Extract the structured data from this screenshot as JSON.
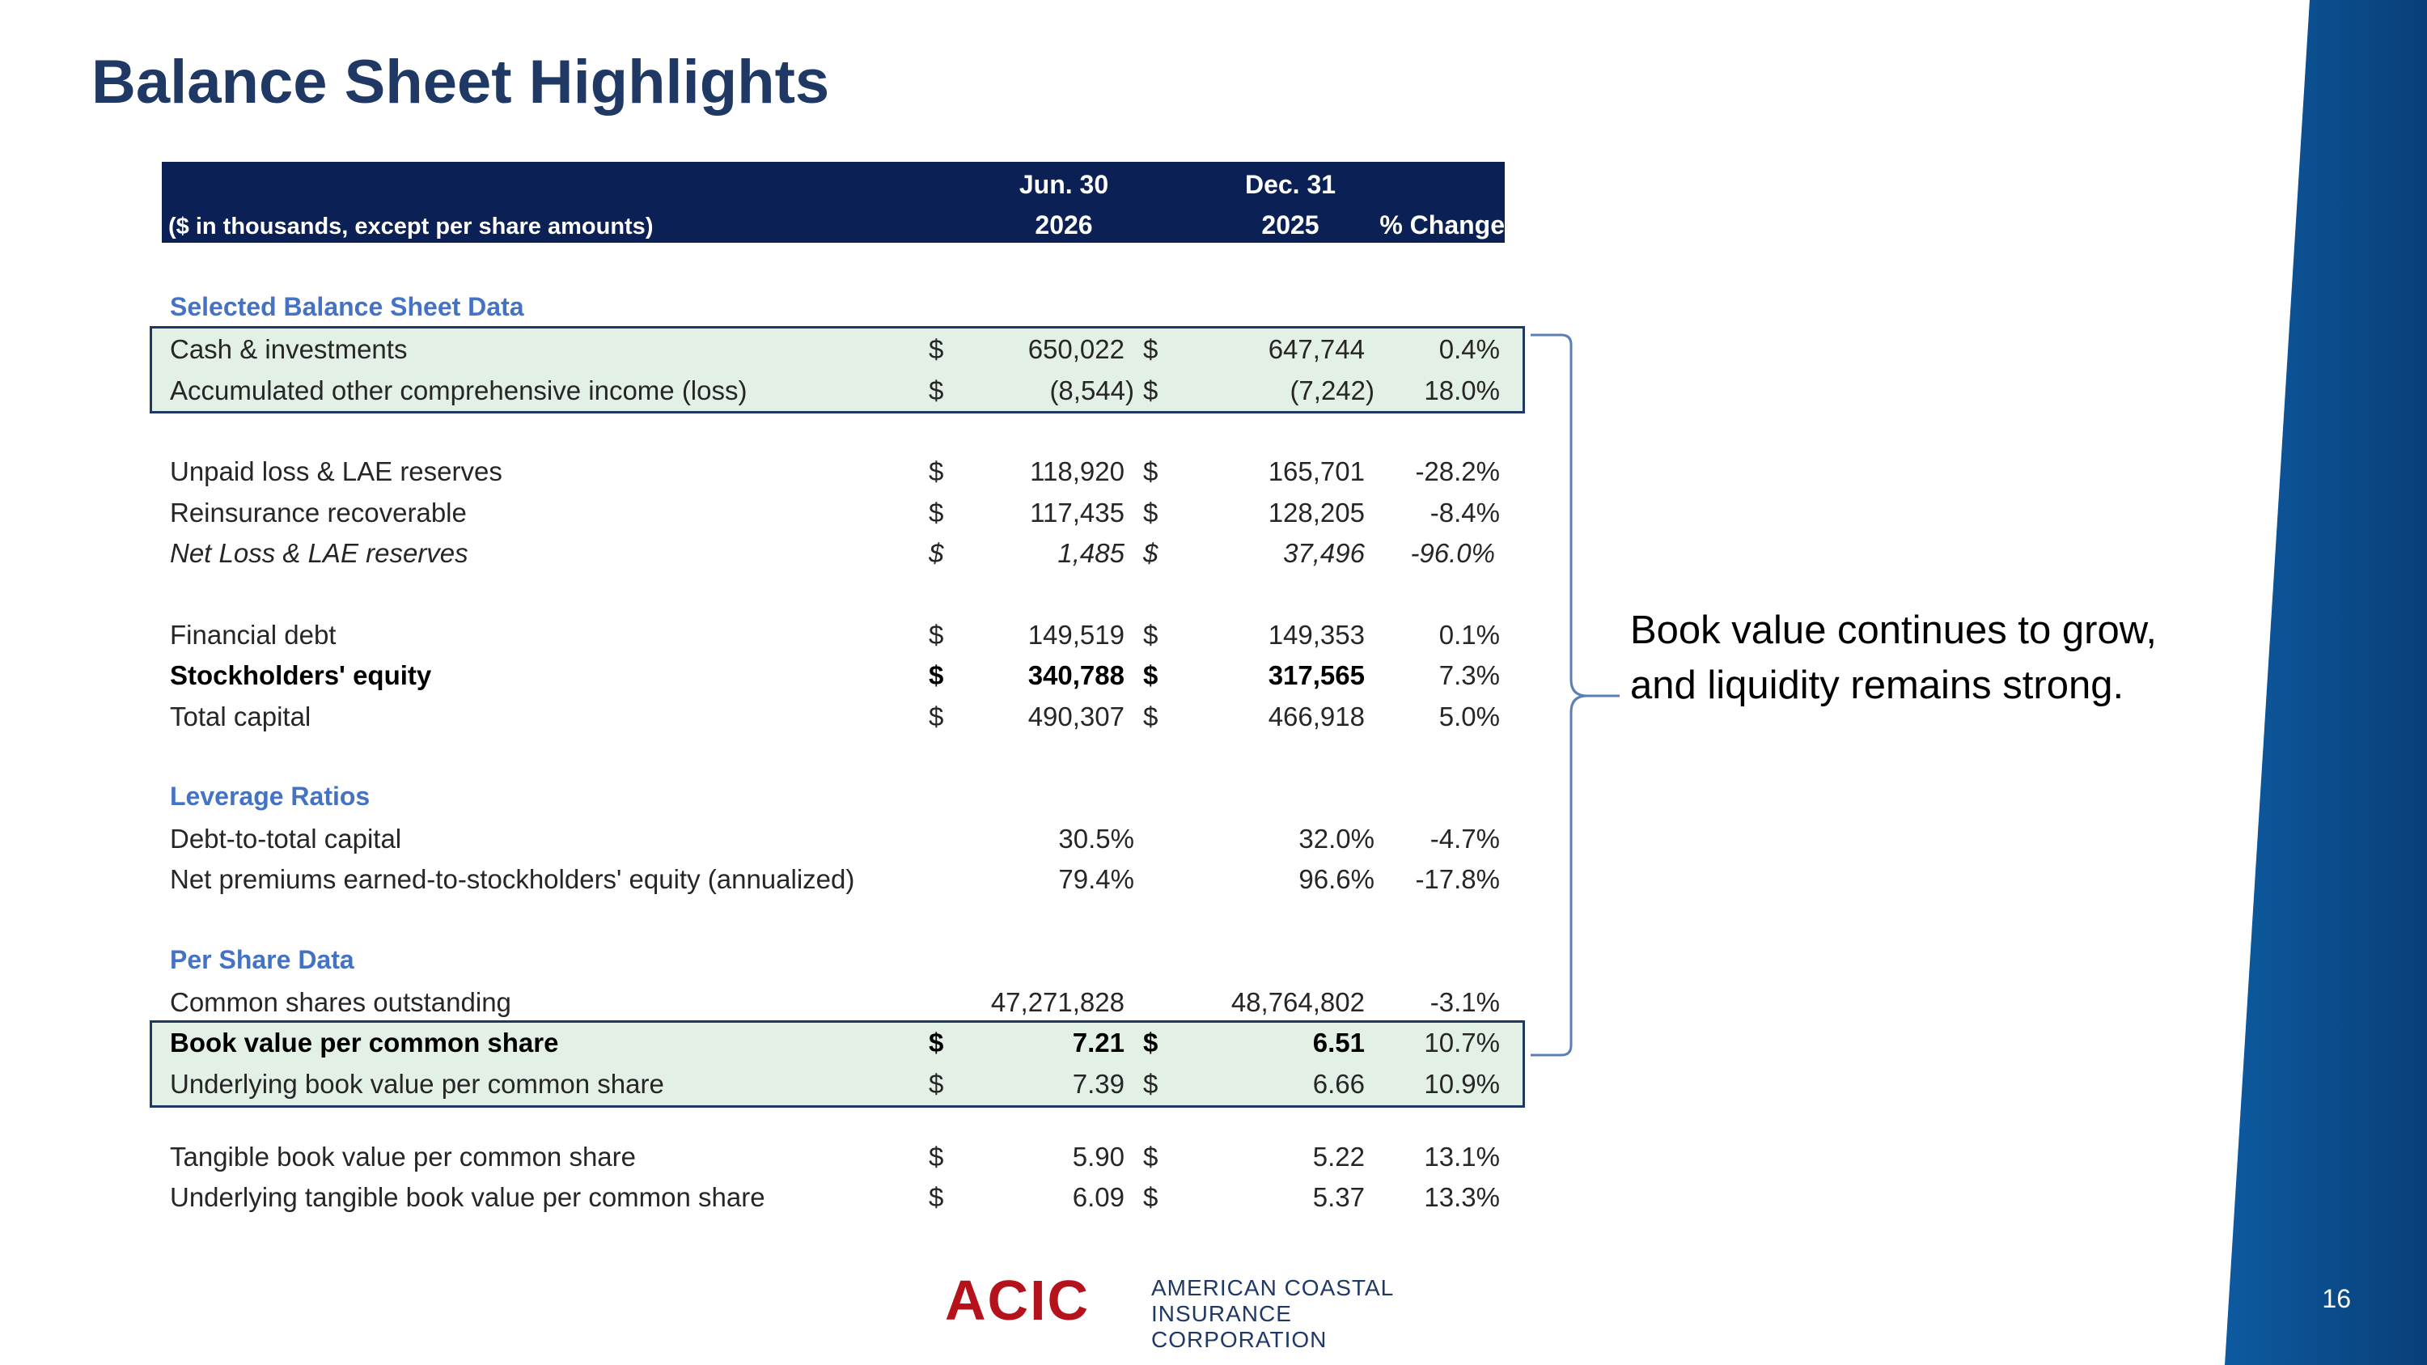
{
  "title": "Balance Sheet Highlights",
  "page_number": "16",
  "header": {
    "note": "($ in thousands, except per share amounts)",
    "col1_line1": "Jun. 30",
    "col1_line2": "2026",
    "col2_line1": "Dec. 31",
    "col2_line2": "2025",
    "col3": "% Change"
  },
  "sections": {
    "balance": "Selected Balance Sheet Data",
    "leverage": "Leverage Ratios",
    "per_share": "Per Share Data"
  },
  "rows": [
    {
      "label": "Cash & investments",
      "d1": "$",
      "v1": "650,022",
      "d2": "$",
      "v2": "647,744",
      "pct": "0.4%"
    },
    {
      "label": "Accumulated other comprehensive income (loss)",
      "d1": "$",
      "v1": "(8,544)",
      "d2": "$",
      "v2": "(7,242)",
      "pct": "18.0%"
    },
    {
      "label": "Unpaid loss & LAE reserves",
      "d1": "$",
      "v1": "118,920",
      "d2": "$",
      "v2": "165,701",
      "pct": "-28.2%"
    },
    {
      "label": "Reinsurance recoverable",
      "d1": "$",
      "v1": "117,435",
      "d2": "$",
      "v2": "128,205",
      "pct": "-8.4%"
    },
    {
      "label": "Net Loss & LAE reserves",
      "d1": "$",
      "v1": "1,485",
      "d2": "$",
      "v2": "37,496",
      "pct": "-96.0%"
    },
    {
      "label": "Financial debt",
      "d1": "$",
      "v1": "149,519",
      "d2": "$",
      "v2": "149,353",
      "pct": "0.1%"
    },
    {
      "label": "Stockholders' equity",
      "d1": "$",
      "v1": "340,788",
      "d2": "$",
      "v2": "317,565",
      "pct": "7.3%"
    },
    {
      "label": "Total capital",
      "d1": "$",
      "v1": "490,307",
      "d2": "$",
      "v2": "466,918",
      "pct": "5.0%"
    },
    {
      "label": "Debt-to-total capital",
      "d1": "",
      "v1": "30.5%",
      "d2": "",
      "v2": "32.0%",
      "pct": "-4.7%"
    },
    {
      "label": "Net premiums earned-to-stockholders' equity (annualized)",
      "d1": "",
      "v1": "79.4%",
      "d2": "",
      "v2": "96.6%",
      "pct": "-17.8%"
    },
    {
      "label": "Common shares outstanding",
      "d1": "",
      "v1": "47,271,828",
      "d2": "",
      "v2": "48,764,802",
      "pct": "-3.1%"
    },
    {
      "label": "Book value per common share",
      "d1": "$",
      "v1": "7.21",
      "d2": "$",
      "v2": "6.51",
      "pct": "10.7%"
    },
    {
      "label": "Underlying book value per common share",
      "d1": "$",
      "v1": "7.39",
      "d2": "$",
      "v2": "6.66",
      "pct": "10.9%"
    },
    {
      "label": "Tangible book value per common share",
      "d1": "$",
      "v1": "5.90",
      "d2": "$",
      "v2": "5.22",
      "pct": "13.1%"
    },
    {
      "label": "Underlying tangible book value per common share",
      "d1": "$",
      "v1": "6.09",
      "d2": "$",
      "v2": "5.37",
      "pct": "13.3%"
    }
  ],
  "callout": {
    "line1": "Book value continues to grow,",
    "line2": "and liquidity remains strong."
  },
  "logo": {
    "mark": "ACIC",
    "line1": "AMERICAN COASTAL",
    "line2": "INSURANCE CORPORATION"
  },
  "colors": {
    "title": "#1f3864",
    "header_bg": "#0b2156",
    "section": "#4472c4",
    "highlight": "#e2f0e6",
    "brand_red": "#b5121b",
    "band_blue": "#0b4a8a"
  }
}
